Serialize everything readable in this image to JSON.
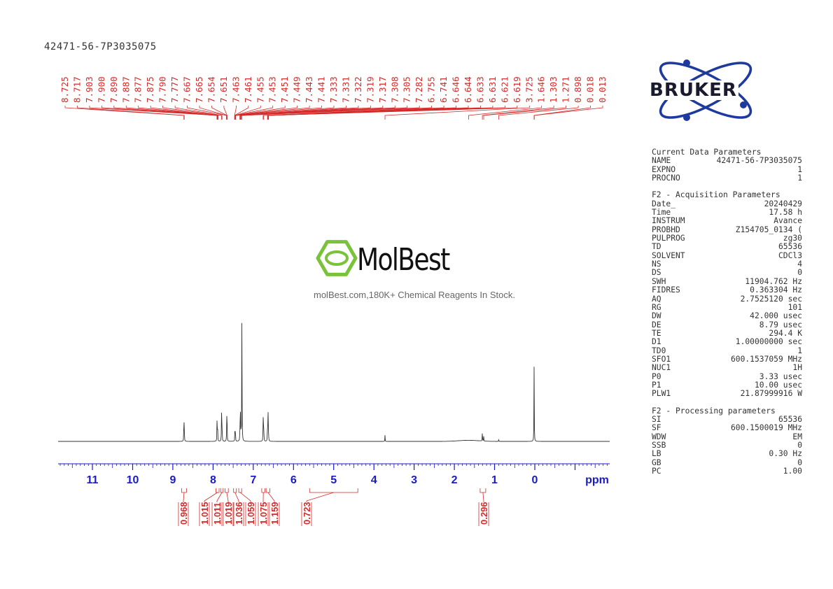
{
  "sample_id": "42471-56-7P3035075",
  "watermark": {
    "brand": "MolBest",
    "tagline": "molBest.com,180K+ Chemical Reagents In Stock."
  },
  "logo": {
    "text": "BRUKER"
  },
  "colors": {
    "peak_label": "#d42a2a",
    "axis": "#1a1acc",
    "spectrum": "#333333",
    "logo_blue": "#1f3a9e",
    "molbest_green": "#7ac23a"
  },
  "params": {
    "sections": [
      {
        "title": "Current Data Parameters",
        "rows": [
          [
            "NAME",
            "42471-56-7P3035075"
          ],
          [
            "EXPNO",
            "1"
          ],
          [
            "PROCNO",
            "1"
          ]
        ]
      },
      {
        "title": "F2 - Acquisition Parameters",
        "rows": [
          [
            "Date_",
            "20240429"
          ],
          [
            "Time",
            "17.58 h"
          ],
          [
            "INSTRUM",
            "Avance"
          ],
          [
            "PROBHD",
            "Z154705_0134 ("
          ],
          [
            "PULPROG",
            "zg30"
          ],
          [
            "TD",
            "65536"
          ],
          [
            "SOLVENT",
            "CDCl3"
          ],
          [
            "NS",
            "4"
          ],
          [
            "DS",
            "0"
          ],
          [
            "SWH",
            "11904.762 Hz"
          ],
          [
            "FIDRES",
            "0.363304 Hz"
          ],
          [
            "AQ",
            "2.7525120 sec"
          ],
          [
            "RG",
            "101"
          ],
          [
            "DW",
            "42.000 usec"
          ],
          [
            "DE",
            "8.79 usec"
          ],
          [
            "TE",
            "294.4 K"
          ],
          [
            "D1",
            "1.00000000 sec"
          ],
          [
            "TD0",
            "1"
          ],
          [
            "SFO1",
            "600.1537059 MHz"
          ],
          [
            "NUC1",
            "1H"
          ],
          [
            "P0",
            "3.33 usec"
          ],
          [
            "P1",
            "10.00 usec"
          ],
          [
            "PLW1",
            "21.87999916 W"
          ]
        ]
      },
      {
        "title": "F2 - Processing parameters",
        "rows": [
          [
            "SI",
            "65536"
          ],
          [
            "SF",
            "600.1500019 MHz"
          ],
          [
            "WDW",
            "EM"
          ],
          [
            "SSB",
            "0"
          ],
          [
            "LB",
            "0.30 Hz"
          ],
          [
            "GB",
            "0"
          ],
          [
            "PC",
            "1.00"
          ]
        ]
      }
    ]
  },
  "chart_data": {
    "type": "line",
    "xlabel": "ppm",
    "xlim": [
      12.0,
      -1.9
    ],
    "ticks": [
      "11",
      "10",
      "9",
      "8",
      "7",
      "6",
      "5",
      "4",
      "3",
      "2",
      "1",
      "0"
    ],
    "peak_labels": [
      "8.725",
      "8.717",
      "7.903",
      "7.900",
      "7.890",
      "7.887",
      "7.877",
      "7.875",
      "7.790",
      "7.777",
      "7.667",
      "7.665",
      "7.654",
      "7.651",
      "7.463",
      "7.461",
      "7.455",
      "7.453",
      "7.451",
      "7.449",
      "7.443",
      "7.441",
      "7.333",
      "7.331",
      "7.322",
      "7.319",
      "7.317",
      "7.308",
      "7.305",
      "7.282",
      "6.755",
      "6.741",
      "6.646",
      "6.644",
      "6.633",
      "6.631",
      "6.621",
      "6.619",
      "3.725",
      "1.646",
      "1.303",
      "1.271",
      "0.898",
      "0.018",
      "0.013"
    ],
    "integrals": [
      {
        "label": "0.968",
        "from": 8.78,
        "to": 8.66
      },
      {
        "label": "1.015",
        "from": 7.93,
        "to": 7.85
      },
      {
        "label": "1.011",
        "from": 7.81,
        "to": 7.75
      },
      {
        "label": "1.019",
        "from": 7.7,
        "to": 7.62
      },
      {
        "label": "1.036",
        "from": 7.49,
        "to": 7.42
      },
      {
        "label": "1.059",
        "from": 7.36,
        "to": 7.29
      },
      {
        "label": "1.075",
        "from": 6.79,
        "to": 6.71
      },
      {
        "label": "1.159",
        "from": 6.68,
        "to": 6.59
      },
      {
        "label": "0.723",
        "from": 5.6,
        "to": 4.4
      },
      {
        "label": "0.296",
        "from": 1.36,
        "to": 1.22
      }
    ],
    "peaks": [
      {
        "ppm": 8.725,
        "h": 0.14
      },
      {
        "ppm": 8.717,
        "h": 0.13
      },
      {
        "ppm": 7.9,
        "h": 0.16
      },
      {
        "ppm": 7.888,
        "h": 0.14
      },
      {
        "ppm": 7.79,
        "h": 0.19
      },
      {
        "ppm": 7.777,
        "h": 0.17
      },
      {
        "ppm": 7.66,
        "h": 0.16
      },
      {
        "ppm": 7.652,
        "h": 0.14
      },
      {
        "ppm": 7.455,
        "h": 0.1
      },
      {
        "ppm": 7.445,
        "h": 0.09
      },
      {
        "ppm": 7.33,
        "h": 0.15
      },
      {
        "ppm": 7.318,
        "h": 0.17
      },
      {
        "ppm": 7.282,
        "h": 1.0
      },
      {
        "ppm": 7.305,
        "h": 0.09
      },
      {
        "ppm": 6.755,
        "h": 0.18
      },
      {
        "ppm": 6.741,
        "h": 0.17
      },
      {
        "ppm": 6.644,
        "h": 0.18
      },
      {
        "ppm": 6.631,
        "h": 0.17
      },
      {
        "ppm": 6.62,
        "h": 0.06
      },
      {
        "ppm": 3.725,
        "h": 0.04
      },
      {
        "ppm": 1.303,
        "h": 0.07
      },
      {
        "ppm": 1.271,
        "h": 0.03
      },
      {
        "ppm": 0.898,
        "h": 0.012
      },
      {
        "ppm": 0.018,
        "h": 0.47
      },
      {
        "ppm": 0.013,
        "h": 0.05
      }
    ]
  }
}
